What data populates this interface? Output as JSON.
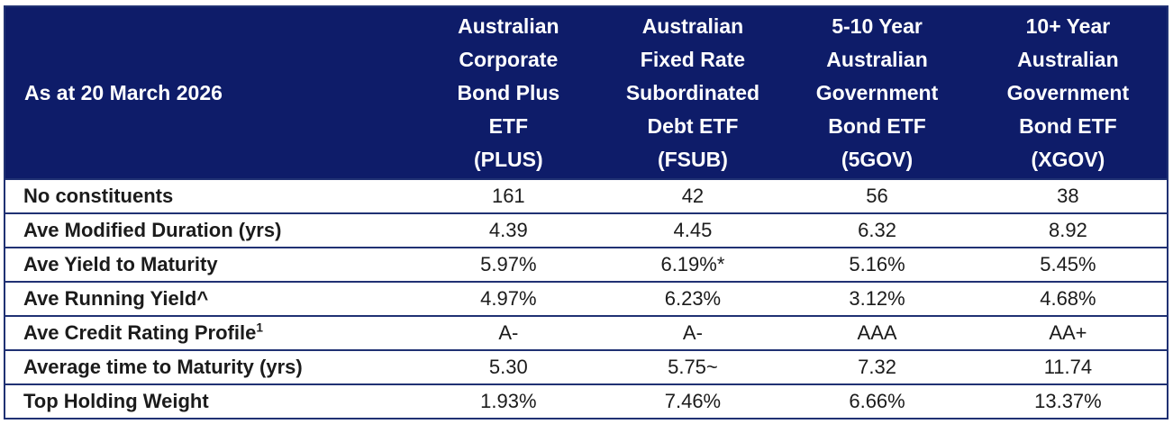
{
  "table": {
    "corner_label": "As at 20 March 2026",
    "columns": [
      {
        "id": "PLUS",
        "lines": [
          "Australian",
          "Corporate",
          "Bond Plus",
          "ETF",
          "(PLUS)"
        ]
      },
      {
        "id": "FSUB",
        "lines": [
          "Australian",
          "Fixed Rate",
          "Subordinated",
          "Debt ETF",
          "(FSUB)"
        ]
      },
      {
        "id": "5GOV",
        "lines": [
          "5-10 Year",
          "Australian",
          "Government",
          "Bond ETF",
          "(5GOV)"
        ]
      },
      {
        "id": "XGOV",
        "lines": [
          "10+ Year",
          "Australian",
          "Government",
          "Bond ETF",
          "(XGOV)"
        ]
      }
    ],
    "rows": [
      {
        "label": "No constituents",
        "values": [
          "161",
          "42",
          "56",
          "38"
        ]
      },
      {
        "label": "Ave Modified Duration (yrs)",
        "values": [
          "4.39",
          "4.45",
          "6.32",
          "8.92"
        ]
      },
      {
        "label": "Ave Yield to Maturity",
        "values": [
          "5.97%",
          "6.19%*",
          "5.16%",
          "5.45%"
        ]
      },
      {
        "label": "Ave Running Yield^",
        "values": [
          "4.97%",
          "6.23%",
          "3.12%",
          "4.68%"
        ]
      },
      {
        "label": "Ave Credit Rating Profile",
        "sup": "1",
        "values": [
          "A-",
          "A-",
          "AAA",
          "AA+"
        ]
      },
      {
        "label": "Average time to Maturity (yrs)",
        "values": [
          "5.30",
          "5.75~",
          "7.32",
          "11.74"
        ]
      },
      {
        "label": "Top Holding Weight",
        "values": [
          "1.93%",
          "7.46%",
          "6.66%",
          "13.37%"
        ]
      }
    ]
  },
  "colors": {
    "header_bg": "#0e1c69",
    "header_text": "#ffffff",
    "border": "#203173",
    "body_text": "#1b1b1b",
    "row_bg": "#ffffff"
  }
}
